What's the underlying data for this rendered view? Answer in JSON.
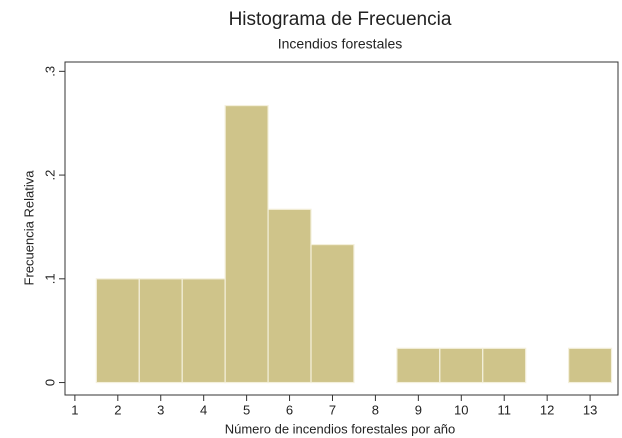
{
  "chart_data": {
    "type": "histogram",
    "title": "Histograma de Frecuencia",
    "subtitle": "Incendios forestales",
    "xlabel": "Número de incendios forestales por año",
    "ylabel": "Frecuencia Relativa",
    "bins": [
      1.5,
      2.5,
      3.5,
      4.5,
      5.5,
      6.5,
      7.5,
      8.5,
      9.5,
      10.5,
      11.5,
      12.5,
      13.5
    ],
    "values": [
      0.1,
      0.1,
      0.1,
      0.267,
      0.167,
      0.133,
      0,
      0.033,
      0.033,
      0.033,
      0,
      0.033
    ],
    "color": "#cfc48a",
    "xlim": [
      0.77,
      13.65
    ],
    "xticks": [
      1,
      2,
      3,
      4,
      5,
      6,
      7,
      8,
      9,
      10,
      11,
      12,
      13
    ],
    "ylim": [
      -0.012,
      0.309
    ],
    "yticks": [
      0,
      {
        "value": 0.1,
        "label": ".1"
      },
      {
        "value": 0.2,
        "label": ".2"
      },
      {
        "value": 0.3,
        "label": ".3"
      }
    ]
  }
}
